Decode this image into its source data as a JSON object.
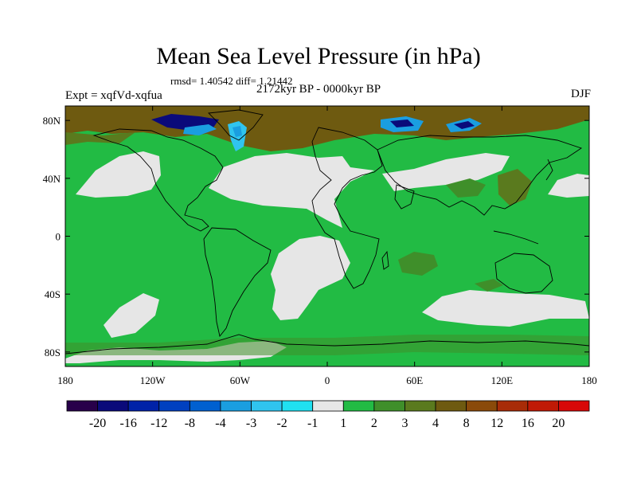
{
  "title": "Mean Sea Level Pressure (in hPa)",
  "stats_line": "rmsd= 1.40542 diff= 1.21442",
  "period": "2172kyr BP - 0000kyr BP",
  "experiment": "Expt = xqfVd-xqfua",
  "season": "DJF",
  "axes": {
    "lon_ticks": [
      {
        "value": -180,
        "label": "180"
      },
      {
        "value": -120,
        "label": "120W"
      },
      {
        "value": -60,
        "label": "60W"
      },
      {
        "value": 0,
        "label": "0"
      },
      {
        "value": 60,
        "label": "60E"
      },
      {
        "value": 120,
        "label": "120E"
      },
      {
        "value": 180,
        "label": "180"
      }
    ],
    "lat_ticks": [
      {
        "value": 80,
        "label": "80N"
      },
      {
        "value": 40,
        "label": "40N"
      },
      {
        "value": 0,
        "label": "0"
      },
      {
        "value": -40,
        "label": "40S"
      },
      {
        "value": -80,
        "label": "80S"
      }
    ],
    "lon_range": [
      -180,
      180
    ],
    "lat_range": [
      -90,
      90
    ]
  },
  "colorbar": {
    "colors": [
      "#28004a",
      "#0a0a7a",
      "#0022a8",
      "#0040c0",
      "#0060d0",
      "#1a9ee0",
      "#30c4ee",
      "#20e0f0",
      "#e6e6e6",
      "#22bb44",
      "#3f8f2a",
      "#5a7a1e",
      "#6e5a10",
      "#8a4a0a",
      "#a82c08",
      "#c01a06",
      "#d80808"
    ],
    "labels": [
      "-20",
      "-16",
      "-12",
      "-8",
      "-4",
      "-3",
      "-2",
      "-1",
      "1",
      "2",
      "3",
      "4",
      "8",
      "12",
      "16",
      "20"
    ]
  },
  "fields": {
    "background_color": "#22bb44",
    "near_zero_color": "#e6e6e6",
    "positive_strong_color": "#6e5a10",
    "negative_colors": [
      "#0a0a7a",
      "#1a9ee0",
      "#30c4ee"
    ]
  }
}
